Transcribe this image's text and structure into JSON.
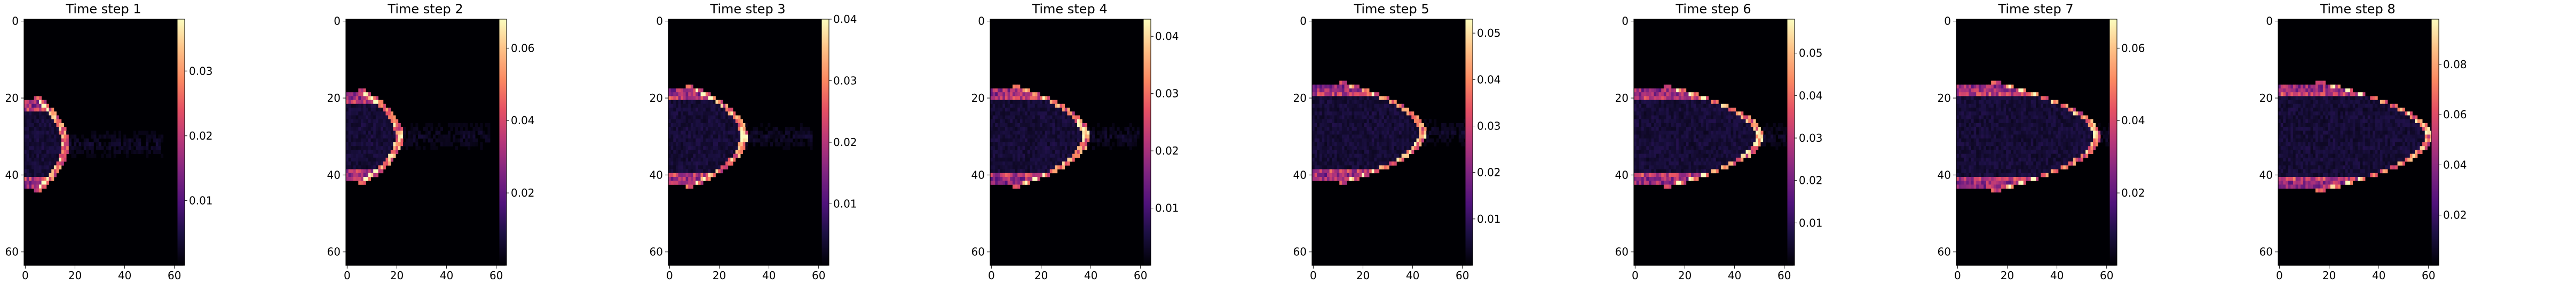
{
  "chart_data": [
    {
      "type": "heatmap",
      "title": "Time step 1",
      "x_ticks": [
        0,
        20,
        40,
        60
      ],
      "y_ticks": [
        0,
        20,
        40,
        60
      ],
      "xlim": [
        0,
        63
      ],
      "ylim": [
        63,
        0
      ],
      "colormap": "magma",
      "colorbar": {
        "min": 0,
        "max": 0.038,
        "ticks": [
          "0.01",
          "0.02",
          "0.03"
        ]
      },
      "blob": {
        "front_x": 16,
        "front_y": 32,
        "half_height": 10,
        "tail_x": 40,
        "tail_x2": 56,
        "peak": 0.038
      }
    },
    {
      "type": "heatmap",
      "title": "Time step 2",
      "x_ticks": [
        0,
        20,
        40,
        60
      ],
      "y_ticks": [
        0,
        20,
        40,
        60
      ],
      "xlim": [
        0,
        63
      ],
      "ylim": [
        63,
        0
      ],
      "colormap": "magma",
      "colorbar": {
        "min": 0,
        "max": 0.068,
        "ticks": [
          "0.02",
          "0.04",
          "0.06"
        ]
      },
      "blob": {
        "front_x": 21,
        "front_y": 30,
        "half_height": 10,
        "tail_x": 42,
        "tail_x2": 58,
        "peak": 0.068
      }
    },
    {
      "type": "heatmap",
      "title": "Time step 3",
      "x_ticks": [
        0,
        20,
        40,
        60
      ],
      "y_ticks": [
        0,
        20,
        40,
        60
      ],
      "xlim": [
        0,
        63
      ],
      "ylim": [
        63,
        0
      ],
      "colormap": "magma",
      "colorbar": {
        "min": 0,
        "max": 0.04,
        "ticks": [
          "0.01",
          "0.02",
          "0.03",
          "0.04"
        ]
      },
      "blob": {
        "front_x": 30,
        "front_y": 30,
        "half_height": 11,
        "tail_x": 44,
        "tail_x2": 58,
        "peak": 0.04
      }
    },
    {
      "type": "heatmap",
      "title": "Time step 4",
      "x_ticks": [
        0,
        20,
        40,
        60
      ],
      "y_ticks": [
        0,
        20,
        40,
        60
      ],
      "xlim": [
        0,
        63
      ],
      "ylim": [
        63,
        0
      ],
      "colormap": "magma",
      "colorbar": {
        "min": 0,
        "max": 0.043,
        "ticks": [
          "0.01",
          "0.02",
          "0.03",
          "0.04"
        ]
      },
      "blob": {
        "front_x": 38,
        "front_y": 30,
        "half_height": 11,
        "tail_x": 48,
        "tail_x2": 60,
        "peak": 0.043
      }
    },
    {
      "type": "heatmap",
      "title": "Time step 5",
      "x_ticks": [
        0,
        20,
        40,
        60
      ],
      "y_ticks": [
        0,
        20,
        40,
        60
      ],
      "xlim": [
        0,
        63
      ],
      "ylim": [
        63,
        0
      ],
      "colormap": "magma",
      "colorbar": {
        "min": 0,
        "max": 0.053,
        "ticks": [
          "0.01",
          "0.02",
          "0.03",
          "0.04",
          "0.05"
        ]
      },
      "blob": {
        "front_x": 44,
        "front_y": 29,
        "half_height": 11,
        "tail_x": 52,
        "tail_x2": 62,
        "peak": 0.053
      }
    },
    {
      "type": "heatmap",
      "title": "Time step 6",
      "x_ticks": [
        0,
        20,
        40,
        60
      ],
      "y_ticks": [
        0,
        20,
        40,
        60
      ],
      "xlim": [
        0,
        63
      ],
      "ylim": [
        63,
        0
      ],
      "colormap": "magma",
      "colorbar": {
        "min": 0,
        "max": 0.058,
        "ticks": [
          "0.01",
          "0.02",
          "0.03",
          "0.04",
          "0.05"
        ]
      },
      "blob": {
        "front_x": 50,
        "front_y": 30,
        "half_height": 11,
        "tail_x": 56,
        "tail_x2": 63,
        "peak": 0.058
      }
    },
    {
      "type": "heatmap",
      "title": "Time step 7",
      "x_ticks": [
        0,
        20,
        40,
        60
      ],
      "y_ticks": [
        0,
        20,
        40,
        60
      ],
      "xlim": [
        0,
        63
      ],
      "ylim": [
        63,
        0
      ],
      "colormap": "magma",
      "colorbar": {
        "min": 0,
        "max": 0.068,
        "ticks": [
          "0.02",
          "0.04",
          "0.06"
        ]
      },
      "blob": {
        "front_x": 56,
        "front_y": 30,
        "half_height": 12,
        "tail_x": 60,
        "tail_x2": 63,
        "peak": 0.068
      }
    },
    {
      "type": "heatmap",
      "title": "Time step 8",
      "x_ticks": [
        0,
        20,
        40,
        60
      ],
      "y_ticks": [
        0,
        20,
        40,
        60
      ],
      "xlim": [
        0,
        63
      ],
      "ylim": [
        63,
        0
      ],
      "colormap": "magma",
      "colorbar": {
        "min": 0,
        "max": 0.098,
        "ticks": [
          "0.02",
          "0.04",
          "0.06",
          "0.08"
        ]
      },
      "blob": {
        "front_x": 60,
        "front_y": 30,
        "half_height": 12,
        "tail_x": 62,
        "tail_x2": 63,
        "peak": 0.098
      }
    }
  ]
}
